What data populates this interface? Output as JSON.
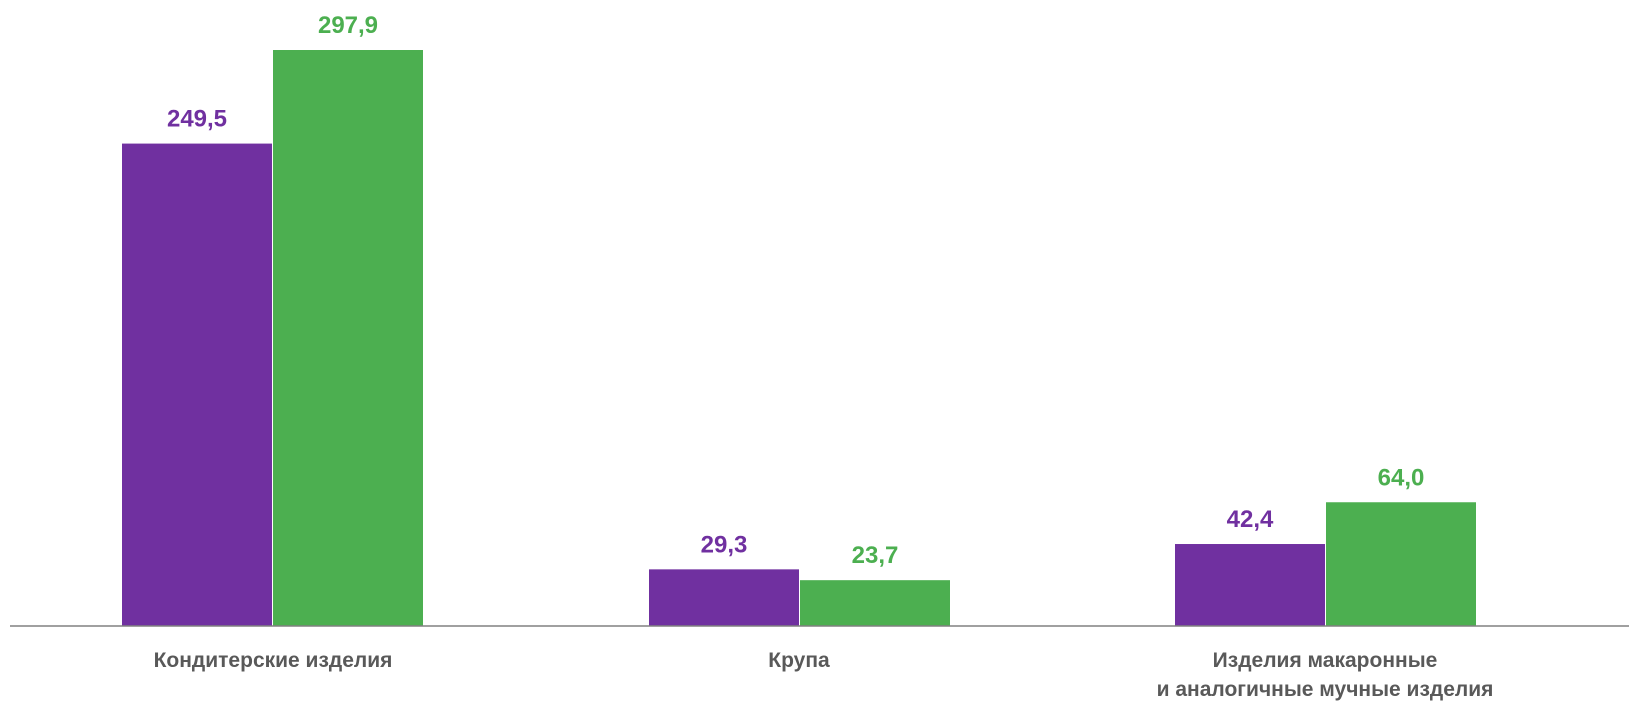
{
  "chart_data": {
    "type": "bar",
    "categories": [
      [
        "Кондитерские изделия"
      ],
      [
        "Крупа"
      ],
      [
        "Изделия макаронные",
        "и аналогичные мучные изделия"
      ]
    ],
    "series": [
      {
        "color": "#7030a0",
        "values": [
          249.5,
          29.3,
          42.4
        ],
        "labels": [
          "249,5",
          "29,3",
          "42,4"
        ]
      },
      {
        "color": "#4caf50",
        "values": [
          297.9,
          23.7,
          64.0
        ],
        "labels": [
          "297,9",
          "23,7",
          "64,0"
        ]
      }
    ],
    "title": "",
    "xlabel": "",
    "ylabel": "",
    "ylim": [
      0,
      320
    ],
    "grid": false,
    "legend": "none",
    "baseline_color": "#808080"
  }
}
